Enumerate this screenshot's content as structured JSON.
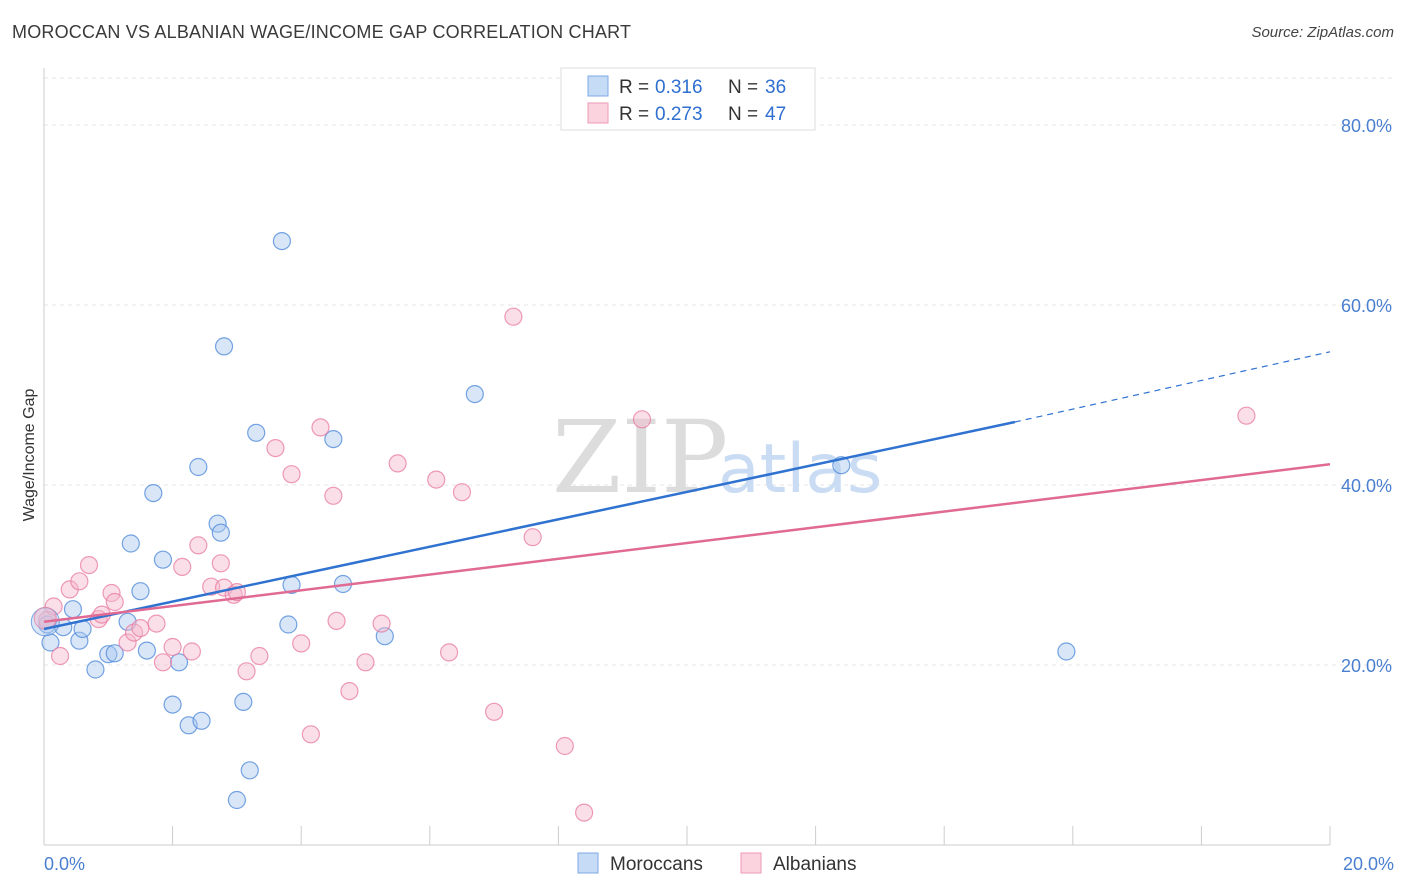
{
  "header": {
    "title": "MOROCCAN VS ALBANIAN WAGE/INCOME GAP CORRELATION CHART",
    "source": "Source: ZipAtlas.com"
  },
  "watermark": {
    "zip": "ZIP",
    "atlas": "atlas"
  },
  "legend": {
    "rows": [
      {
        "r_label": "R =",
        "r_value": "0.316",
        "n_label": "N =",
        "n_value": "36",
        "color": "#a9c8f0"
      },
      {
        "r_label": "R =",
        "r_value": "0.273",
        "n_label": "N =",
        "n_value": "47",
        "color": "#f5b8cb"
      }
    ]
  },
  "bottom_legend": [
    {
      "label": "Moroccans",
      "color": "#a9c8f0"
    },
    {
      "label": "Albanians",
      "color": "#f5b8cb"
    }
  ],
  "chart_data": {
    "type": "scatter",
    "title": "MOROCCAN VS ALBANIAN WAGE/INCOME GAP CORRELATION CHART",
    "xlabel": "",
    "ylabel": "Wage/Income Gap",
    "xlim": [
      0,
      20
    ],
    "ylim": [
      0,
      85
    ],
    "x_tick_labels": [
      "0.0%",
      "20.0%"
    ],
    "y_ticks": [
      20,
      40,
      60,
      80
    ],
    "y_tick_labels": [
      "20.0%",
      "40.0%",
      "60.0%",
      "80.0%"
    ],
    "grid": true,
    "series": [
      {
        "name": "Moroccans",
        "color": "#4a86d8",
        "fill": "#a9c8f0",
        "x": [
          0.05,
          0.1,
          0.3,
          0.45,
          0.55,
          0.6,
          0.8,
          1.0,
          1.1,
          1.3,
          1.5,
          1.6,
          1.7,
          1.85,
          2.0,
          2.1,
          2.25,
          2.4,
          2.7,
          2.75,
          2.8,
          3.0,
          3.1,
          3.2,
          3.3,
          3.7,
          3.8,
          3.85,
          4.5,
          4.65,
          5.3,
          6.7,
          12.4,
          15.9,
          1.35,
          2.45
        ],
        "y": [
          24.5,
          22.5,
          24.2,
          26.2,
          22.7,
          24.0,
          19.5,
          21.2,
          21.3,
          24.8,
          28.2,
          21.6,
          39.1,
          31.7,
          15.6,
          20.3,
          13.3,
          42.0,
          35.7,
          34.7,
          55.4,
          5.0,
          15.9,
          8.3,
          45.8,
          67.1,
          24.5,
          28.9,
          45.1,
          29.0,
          23.2,
          50.1,
          42.2,
          21.5,
          33.5,
          13.8
        ]
      },
      {
        "name": "Albanians",
        "color": "#e87aa0",
        "fill": "#f5b8cb",
        "x": [
          0.05,
          0.15,
          0.25,
          0.4,
          0.55,
          0.7,
          0.85,
          0.9,
          1.05,
          1.1,
          1.3,
          1.4,
          1.5,
          1.75,
          1.85,
          2.0,
          2.15,
          2.3,
          2.4,
          2.6,
          2.75,
          2.8,
          2.95,
          3.0,
          3.15,
          3.35,
          3.6,
          3.85,
          4.0,
          4.15,
          4.3,
          4.5,
          4.55,
          4.75,
          5.0,
          5.25,
          5.5,
          6.1,
          6.3,
          6.5,
          7.0,
          7.3,
          7.6,
          8.1,
          8.4,
          9.3,
          18.7
        ],
        "y": [
          25.0,
          26.5,
          21.0,
          28.4,
          29.3,
          31.1,
          25.1,
          25.6,
          28.0,
          27.0,
          22.5,
          23.6,
          24.1,
          24.6,
          20.3,
          22.0,
          30.9,
          21.5,
          33.3,
          28.7,
          31.3,
          28.6,
          27.8,
          28.1,
          19.3,
          21.0,
          44.1,
          41.2,
          22.4,
          12.3,
          46.4,
          38.8,
          24.9,
          17.1,
          20.3,
          24.6,
          42.4,
          40.6,
          21.4,
          39.2,
          14.8,
          58.7,
          34.2,
          11.0,
          3.6,
          47.3,
          47.7
        ]
      }
    ],
    "trendlines": [
      {
        "series": "Moroccans",
        "x": [
          0,
          15.1
        ],
        "y": [
          24.0,
          47.0
        ],
        "dashed_to": [
          20.0,
          54.8
        ]
      },
      {
        "series": "Albanians",
        "x": [
          0,
          20.0
        ],
        "y": [
          24.8,
          42.3
        ]
      }
    ]
  }
}
